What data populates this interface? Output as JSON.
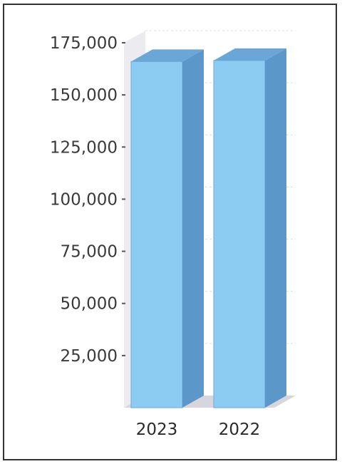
{
  "chart_data": {
    "type": "bar",
    "style": "3d-column",
    "categories": [
      "2023",
      "2022"
    ],
    "values": [
      166000,
      166500
    ],
    "title": "",
    "xlabel": "",
    "ylabel": "",
    "ylim": [
      0,
      175000
    ],
    "yticks": [
      25000,
      50000,
      75000,
      100000,
      125000,
      150000,
      175000
    ],
    "ytick_labels": [
      "25,000",
      "50,000",
      "75,000",
      "100,000",
      "125,000",
      "150,000",
      "175,000"
    ],
    "grid": true,
    "legend": "none",
    "colors": {
      "bar_front": "#8ccbf2",
      "bar_side": "#5b98c9",
      "bar_top": "#6aa6d6",
      "floor": "#d6d6dc",
      "wall": "#ececf0",
      "gridline": "#dcdcdc"
    }
  }
}
